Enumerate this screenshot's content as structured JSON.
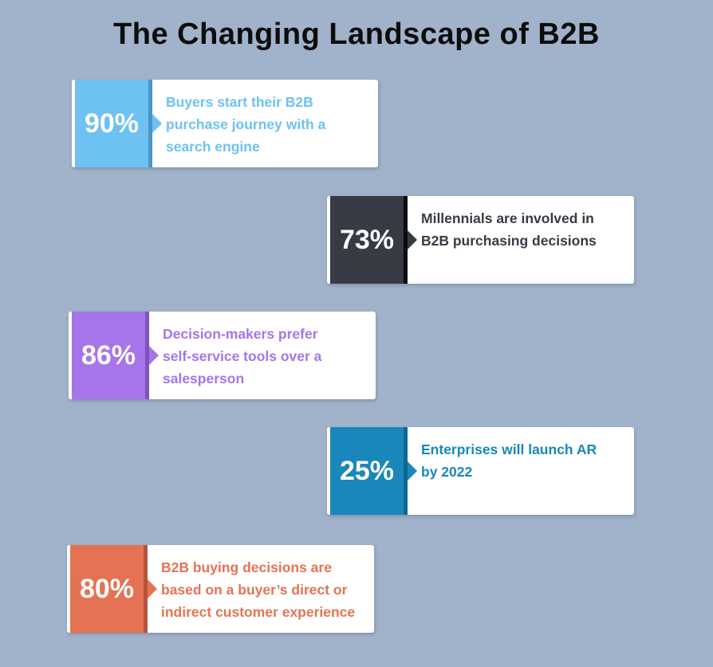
{
  "title": "The Changing Landscape of B2B",
  "stats": [
    {
      "value": "90%",
      "lines": [
        "Buyers start their B2B",
        "purchase journey with a",
        "search engine"
      ],
      "color": "#6ec1f3",
      "dark": "#4d96c4",
      "text_color": "#6ec1f3"
    },
    {
      "value": "73%",
      "lines": [
        "Millennials are involved in",
        "B2B purchasing decisions"
      ],
      "color": "#363b44",
      "dark": "#0b0c0f",
      "text_color": "#363b44"
    },
    {
      "value": "86%",
      "lines": [
        "Decision-makers prefer",
        "self-service tools over a",
        "salesperson"
      ],
      "color": "#a675e9",
      "dark": "#7f52bc",
      "text_color": "#a675e9"
    },
    {
      "value": "25%",
      "lines": [
        "Enterprises will launch AR",
        "by 2022"
      ],
      "color": "#1987ba",
      "dark": "#0f668e",
      "text_color": "#1987ba"
    },
    {
      "value": "80%",
      "lines": [
        "B2B buying decisions are",
        "based on a buyer’s direct or",
        "indirect customer experience"
      ],
      "color": "#e57353",
      "dark": "#b5543a",
      "text_color": "#e57353"
    }
  ]
}
